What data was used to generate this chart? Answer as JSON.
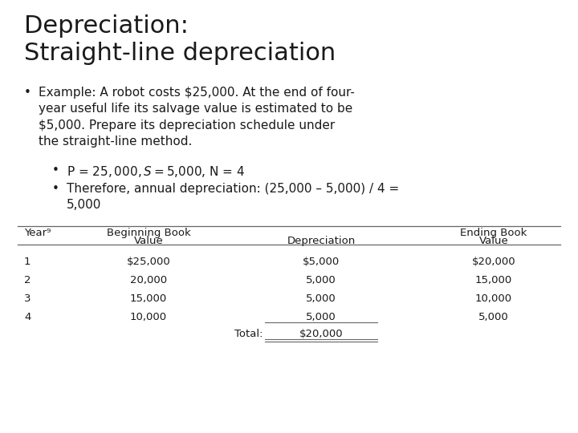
{
  "title_line1": "Depreciation:",
  "title_line2": "Straight-line depreciation",
  "sub_bullet1": "P = $25,000, S = $5,000, N = 4",
  "sub_bullet2": "Therefore, annual depreciation: (25,000 – 5,000) / 4 =\n5,000",
  "table_header_col1": "Year⁹",
  "table_header_col2_line1": "Beginning Book",
  "table_header_col2_line2": "Value",
  "table_header_col3": "Depreciation",
  "table_header_col4_line1": "Ending Book",
  "table_header_col4_line2": "Value",
  "table_rows": [
    [
      "1",
      "$25,000",
      "$5,000",
      "$20,000"
    ],
    [
      "2",
      "20,000",
      "5,000",
      "15,000"
    ],
    [
      "3",
      "15,000",
      "5,000",
      "10,000"
    ],
    [
      "4",
      "10,000",
      "5,000",
      "5,000"
    ]
  ],
  "table_total_label": "Total:",
  "table_total_value": "$20,000",
  "bg_color": "#ffffff",
  "text_color": "#1a1a1a",
  "title_fontsize": 22,
  "body_fontsize": 11,
  "table_fontsize": 9.5
}
